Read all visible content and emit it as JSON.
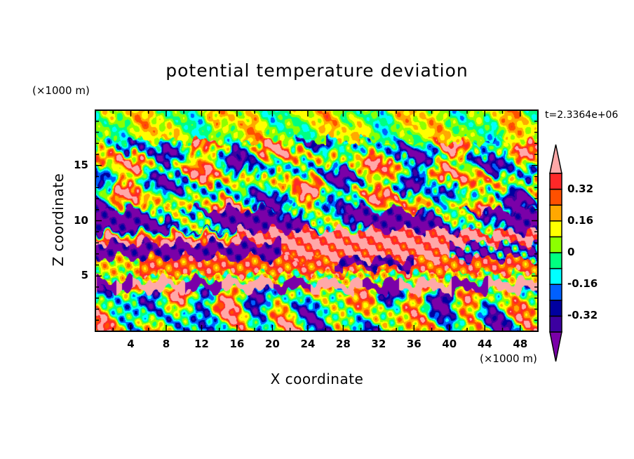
{
  "chart_data": {
    "type": "heatmap",
    "subtype": "filled-contour",
    "title": "potential temperature deviation",
    "xlabel": "X coordinate",
    "ylabel": "Z coordinate",
    "x_unit": "(×1000 m)",
    "y_unit": "(×1000 m)",
    "time_label": "t=2.3364e+06",
    "xlim": [
      0,
      50
    ],
    "ylim": [
      0,
      20
    ],
    "x_ticks": [
      "4",
      "8",
      "12",
      "16",
      "20",
      "24",
      "28",
      "32",
      "36",
      "40",
      "44",
      "48"
    ],
    "y_ticks": [
      "5",
      "10",
      "15"
    ],
    "contour_levels": [
      -0.4,
      -0.32,
      -0.24,
      -0.16,
      -0.08,
      0,
      0.08,
      0.16,
      0.24,
      0.32,
      0.4
    ],
    "colorbar_labels": [
      "0.32",
      "0.16",
      "0",
      "-0.16",
      "-0.32"
    ],
    "colorbar_extend": "both",
    "colors": [
      "#7a00a8",
      "#3c00a0",
      "#0000a0",
      "#0060ff",
      "#00ffff",
      "#00ff80",
      "#8cff00",
      "#ffff00",
      "#ffa800",
      "#ff5000",
      "#ff2828",
      "#ffa8a8"
    ]
  }
}
